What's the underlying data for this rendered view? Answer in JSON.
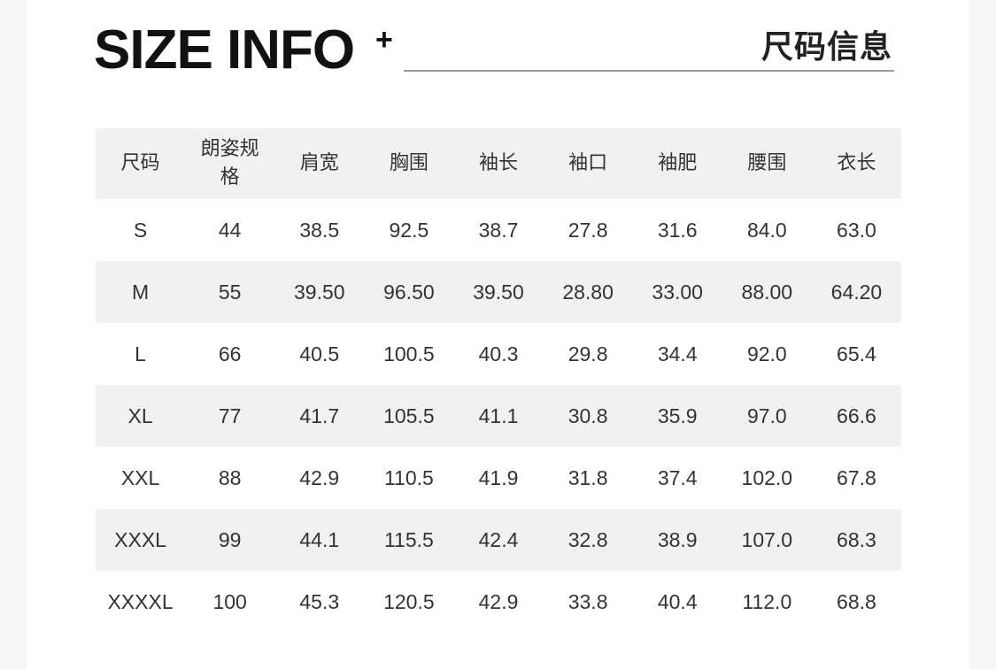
{
  "header": {
    "title": "SIZE INFO",
    "plus": "+",
    "subtitle_cn": "尺码信息"
  },
  "table": {
    "columns": [
      "尺码",
      "朗姿规格",
      "肩宽",
      "胸围",
      "袖长",
      "袖口",
      "袖肥",
      "腰围",
      "衣长"
    ],
    "rows": [
      [
        "S",
        "44",
        "38.5",
        "92.5",
        "38.7",
        "27.8",
        "31.6",
        "84.0",
        "63.0"
      ],
      [
        "M",
        "55",
        "39.50",
        "96.50",
        "39.50",
        "28.80",
        "33.00",
        "88.00",
        "64.20"
      ],
      [
        "L",
        "66",
        "40.5",
        "100.5",
        "40.3",
        "29.8",
        "34.4",
        "92.0",
        "65.4"
      ],
      [
        "XL",
        "77",
        "41.7",
        "105.5",
        "41.1",
        "30.8",
        "35.9",
        "97.0",
        "66.6"
      ],
      [
        "XXL",
        "88",
        "42.9",
        "110.5",
        "41.9",
        "31.8",
        "37.4",
        "102.0",
        "67.8"
      ],
      [
        "XXXL",
        "99",
        "44.1",
        "115.5",
        "42.4",
        "32.8",
        "38.9",
        "107.0",
        "68.3"
      ],
      [
        "XXXXL",
        "100",
        "45.3",
        "120.5",
        "42.9",
        "33.8",
        "40.4",
        "112.0",
        "68.8"
      ]
    ]
  }
}
